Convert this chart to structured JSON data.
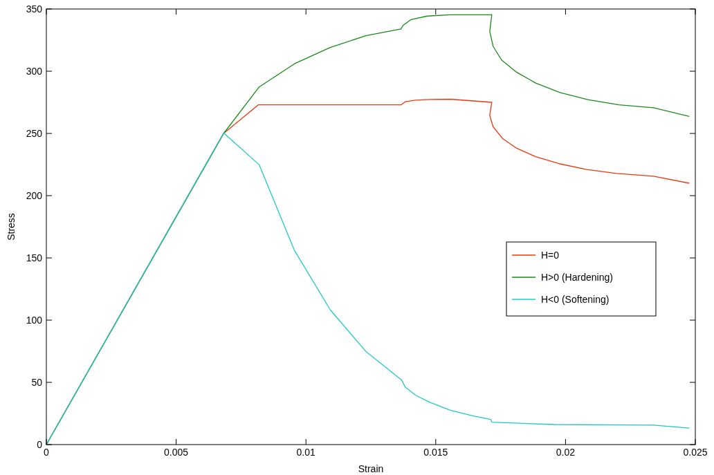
{
  "chart_data": {
    "type": "line",
    "xlabel": "Strain",
    "ylabel": "Stress",
    "xlim": [
      0,
      0.025
    ],
    "ylim": [
      0,
      350
    ],
    "xticks": [
      0,
      0.005,
      0.01,
      0.015,
      0.02,
      0.025
    ],
    "yticks": [
      0,
      50,
      100,
      150,
      200,
      250,
      300,
      350
    ],
    "grid": false,
    "legend": "right",
    "marker": "none",
    "line_style": "solid",
    "series": [
      {
        "name": "H=0",
        "color": "#e8380d",
        "x": [
          0,
          0.00683,
          0.00817,
          0.01367,
          0.01383,
          0.01423,
          0.01476,
          0.01556,
          0.01716,
          0.01708,
          0.01721,
          0.01757,
          0.0181,
          0.01885,
          0.01975,
          0.02081,
          0.02197,
          0.02339,
          0.02477
        ],
        "values": [
          0,
          250,
          273,
          273,
          275.5,
          276.7,
          277.3,
          277.5,
          275,
          264.6,
          255.4,
          246,
          238.3,
          231.3,
          225.7,
          221,
          217.8,
          215.6,
          210
        ]
      },
      {
        "name": "H>0 (Hardening)",
        "color": "#1a8a1a",
        "x": [
          0,
          0.00683,
          0.00819,
          0.00956,
          0.01092,
          0.01231,
          0.01366,
          0.01374,
          0.01405,
          0.01467,
          0.01556,
          0.01716,
          0.01708,
          0.01721,
          0.01754,
          0.0181,
          0.01885,
          0.01979,
          0.02086,
          0.02206,
          0.02339,
          0.02477
        ],
        "values": [
          0,
          250,
          287.2,
          306,
          319,
          328.5,
          334,
          336.8,
          341.5,
          344.3,
          345.4,
          345.4,
          332,
          320,
          308.9,
          299.4,
          290.5,
          282.8,
          277.2,
          273,
          270.6,
          263.7
        ]
      },
      {
        "name": "H<0 (Softening)",
        "color": "#1ec8c8",
        "x": [
          0,
          0.00683,
          0.0082,
          0.00956,
          0.01094,
          0.01231,
          0.01368,
          0.01383,
          0.01423,
          0.01476,
          0.01556,
          0.01645,
          0.01712,
          0.01716,
          0.01957,
          0.02339,
          0.02477
        ],
        "values": [
          0,
          250.4,
          224.8,
          155.9,
          108.2,
          74.8,
          52,
          46.1,
          39.6,
          34.1,
          27.6,
          23,
          20.2,
          18,
          16.1,
          15.6,
          13.3
        ]
      }
    ]
  }
}
